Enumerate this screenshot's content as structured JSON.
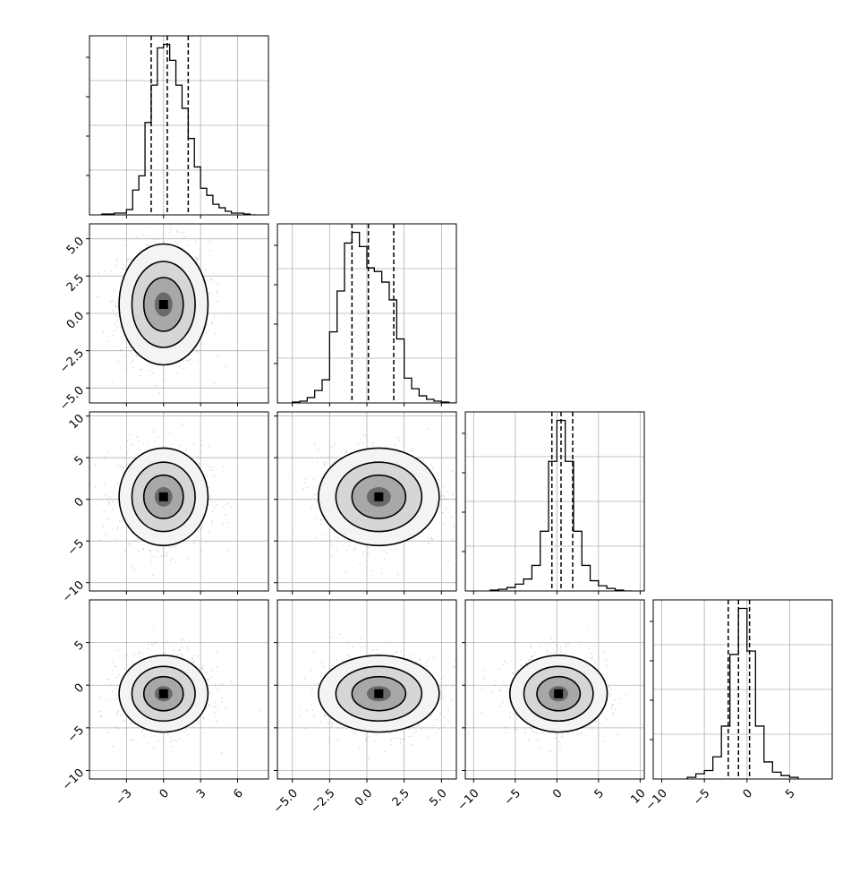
{
  "chart_data": {
    "type": "corner",
    "parameters": [
      {
        "ticks": [
          -3,
          0,
          3,
          6
        ],
        "tick_labels": [
          "−3",
          "0",
          "3",
          "6"
        ],
        "range": [
          -6.0,
          8.5
        ]
      },
      {
        "ticks": [
          -5.0,
          -2.5,
          0.0,
          2.5,
          5.0
        ],
        "tick_labels": [
          "−5.0",
          "−2.5",
          "0.0",
          "2.5",
          "5.0"
        ],
        "range": [
          -6.0,
          6.0
        ]
      },
      {
        "ticks": [
          -10,
          -5,
          0,
          5,
          10
        ],
        "tick_labels": [
          "−10",
          "−5",
          "0",
          "5",
          "10"
        ],
        "range": [
          -11.0,
          10.5
        ]
      },
      {
        "ticks": [
          -10,
          -5,
          0,
          5
        ],
        "tick_labels": [
          "−10",
          "−5",
          "0",
          "5"
        ],
        "range": [
          -11.0,
          10.0
        ]
      }
    ],
    "histograms": [
      {
        "bin_edges": [
          -5.0,
          -4.0,
          -3.0,
          -2.5,
          -2.0,
          -1.5,
          -1.0,
          -0.5,
          0.0,
          0.5,
          1.0,
          1.5,
          2.0,
          2.5,
          3.0,
          3.5,
          4.0,
          4.5,
          5.0,
          5.5,
          6.0,
          6.5,
          7.0,
          7.5
        ],
        "counts": [
          0.5,
          1.0,
          3.0,
          14.0,
          22.0,
          52.0,
          73.0,
          94.0,
          96.0,
          87.0,
          73.0,
          60.0,
          43.0,
          27.0,
          15.0,
          11.0,
          6.0,
          4.0,
          2.0,
          1.0,
          1.0,
          0.5,
          0.0
        ],
        "quantiles": [
          -1.0,
          0.3,
          2.0
        ]
      },
      {
        "bin_edges": [
          -5.0,
          -4.5,
          -4.0,
          -3.5,
          -3.0,
          -2.5,
          -2.0,
          -1.5,
          -1.0,
          -0.5,
          0.0,
          0.5,
          1.0,
          1.5,
          2.0,
          2.5,
          3.0,
          3.5,
          4.0,
          4.5,
          5.0,
          5.5,
          6.0
        ],
        "counts": [
          0.5,
          1.0,
          3.0,
          7.0,
          13.0,
          40.0,
          63.0,
          90.0,
          96.0,
          88.0,
          76.0,
          74.0,
          68.0,
          58.0,
          36.0,
          14.0,
          8.0,
          4.0,
          2.0,
          1.0,
          0.5,
          0.0
        ],
        "quantiles": [
          -1.0,
          0.1,
          1.8
        ]
      },
      {
        "bin_edges": [
          -8.0,
          -7.0,
          -6.0,
          -5.0,
          -4.0,
          -3.0,
          -2.0,
          -1.0,
          0.0,
          1.0,
          2.0,
          3.0,
          4.0,
          5.0,
          6.0,
          7.0,
          8.0,
          9.0
        ],
        "counts": [
          0.5,
          1.0,
          2.0,
          4.0,
          7.0,
          15.0,
          35.0,
          76.0,
          100.0,
          76.0,
          35.0,
          15.0,
          6.0,
          3.0,
          1.5,
          0.5,
          0.0
        ],
        "quantiles": [
          -0.6,
          0.5,
          1.9
        ]
      },
      {
        "bin_edges": [
          -7.0,
          -6.0,
          -5.0,
          -4.0,
          -3.0,
          -2.0,
          -1.0,
          0.0,
          1.0,
          2.0,
          3.0,
          4.0,
          5.0,
          6.0
        ],
        "counts": [
          1.0,
          3.0,
          5.0,
          13.0,
          31.0,
          73.0,
          100.0,
          75.0,
          31.0,
          10.0,
          4.0,
          2.0,
          1.0
        ],
        "quantiles": [
          -2.2,
          -1.0,
          0.3
        ]
      }
    ],
    "density_peaks": {
      "1_0": [
        0.0,
        0.6
      ],
      "2_0": [
        0.0,
        0.3
      ],
      "2_1": [
        0.8,
        0.3
      ],
      "3_0": [
        0.0,
        -1.0
      ],
      "3_1": [
        0.8,
        -1.0
      ],
      "3_2": [
        0.2,
        -1.0
      ]
    },
    "contour_levels": 3,
    "grid": true,
    "colors": {
      "line": "#000000",
      "grid": "#b0b0b0",
      "points": "#8c8c8c",
      "density": "#000000"
    }
  }
}
